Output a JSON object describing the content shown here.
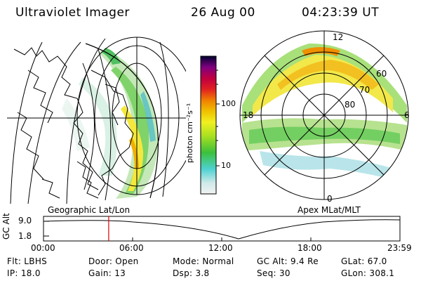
{
  "header": {
    "instrument": "Ultraviolet Imager",
    "date": "26 Aug 00",
    "time": "04:23:39 UT"
  },
  "left_panel": {
    "label": "Geographic Lat/Lon"
  },
  "right_panel": {
    "label": "Apex MLat/MLT",
    "mlt_labels": [
      "12",
      "18",
      "6",
      "0"
    ],
    "lat_labels": [
      "60",
      "70",
      "80"
    ]
  },
  "colorbar": {
    "unit_label": "photon cm⁻²s⁻¹",
    "ticks": [
      "100",
      "10"
    ],
    "colors": [
      "#f0f0f0",
      "#c8e8e8",
      "#40d0d0",
      "#40c040",
      "#a0e020",
      "#f0f020",
      "#f0c000",
      "#f08000",
      "#e02020",
      "#c00040",
      "#800080",
      "#300060",
      "#000030"
    ]
  },
  "timeline": {
    "y_label": "GC Alt",
    "y_ticks": [
      "9.0",
      "1.8"
    ],
    "x_ticks": [
      "00:00",
      "06:00",
      "12:00",
      "18:00",
      "23:59"
    ],
    "current_hour": 4.39
  },
  "info": {
    "row1": {
      "flt": "Flt: LBHS",
      "door": "Door: Open",
      "mode": "Mode: Normal",
      "gcalt": "GC Alt: 9.4 Re",
      "glat": "GLat:  67.0"
    },
    "row2": {
      "ip": "IP: 18.0",
      "gain": "Gain: 13",
      "dsp": "Dsp:    3.8",
      "seq": "Seq: 30",
      "glon": "GLon: 308.1"
    }
  }
}
